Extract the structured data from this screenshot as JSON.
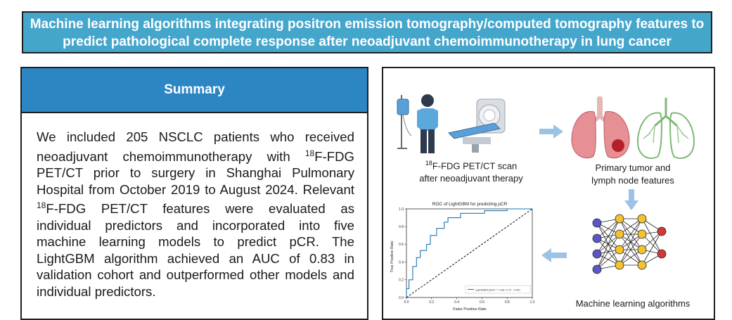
{
  "title": {
    "line1": "Machine learning algorithms integrating positron emission tomography/computed tomography features to",
    "line2": "predict pathological complete response after neoadjuvant chemoimmunotherapy in lung cancer"
  },
  "summary": {
    "heading": "Summary",
    "p_a": "We included 205 NSCLC patients who received neoadjuvant chemoimmunotherapy with ",
    "sup1": "18",
    "p_b": "F-FDG PET/CT prior to surgery in Shanghai Pulmonary Hospital from October 2019 to August 2024. Relevant ",
    "sup2": "18",
    "p_c": "F-FDG PET/CT features were evaluated as individual predictors and incorporated into five machine learning models to predict pCR. The LightGBM algorithm achieved an AUC of 0.83 in validation cohort and outperformed other models and individual predictors."
  },
  "figure": {
    "scan_sup": "18",
    "scan_line1": "F-FDG PET/CT scan",
    "scan_line2": "after neoadjuvant therapy",
    "features_line1": "Primary tumor and",
    "features_line2": "lymph node features",
    "ml_label": "Machine learning algorithms",
    "roc": {
      "title": "ROC of LightGBM for predicting pCR",
      "xlabel": "False Positive Rate",
      "ylabel": "True Positive Rate",
      "legend": "LightGBM (AUC = 0.83, 0.72 - 0.94)",
      "ticks": [
        "0.0",
        "0.2",
        "0.4",
        "0.6",
        "0.8",
        "1.0"
      ]
    }
  },
  "colors": {
    "title_bg": "#45a6cc",
    "summary_header_bg": "#2d86c4",
    "arrow": "#9cc3e6",
    "roc_line": "#1f77b4",
    "node_input": "#5b57c9",
    "node_hidden": "#f2c230",
    "node_output": "#d23838"
  },
  "chart_data": {
    "type": "line",
    "title": "ROC of LightGBM for predicting pCR",
    "xlabel": "False Positive Rate",
    "ylabel": "True Positive Rate",
    "xlim": [
      0,
      1
    ],
    "ylim": [
      0,
      1
    ],
    "legend_position": "bottom-right",
    "series": [
      {
        "name": "LightGBM (AUC = 0.83, 0.72 - 0.94)",
        "x": [
          0.0,
          0.0,
          0.02,
          0.02,
          0.05,
          0.05,
          0.08,
          0.08,
          0.11,
          0.11,
          0.16,
          0.16,
          0.19,
          0.19,
          0.24,
          0.24,
          0.3,
          0.3,
          0.33,
          0.33,
          0.43,
          0.43,
          0.62,
          0.62,
          0.8,
          0.8,
          1.0
        ],
        "y": [
          0.0,
          0.1,
          0.1,
          0.2,
          0.2,
          0.35,
          0.35,
          0.45,
          0.45,
          0.53,
          0.53,
          0.6,
          0.6,
          0.7,
          0.7,
          0.78,
          0.78,
          0.85,
          0.85,
          0.9,
          0.9,
          0.95,
          0.95,
          0.98,
          0.98,
          1.0,
          1.0
        ]
      },
      {
        "name": "",
        "x": [
          0,
          1
        ],
        "y": [
          0,
          1
        ],
        "style": "dashed"
      }
    ]
  }
}
